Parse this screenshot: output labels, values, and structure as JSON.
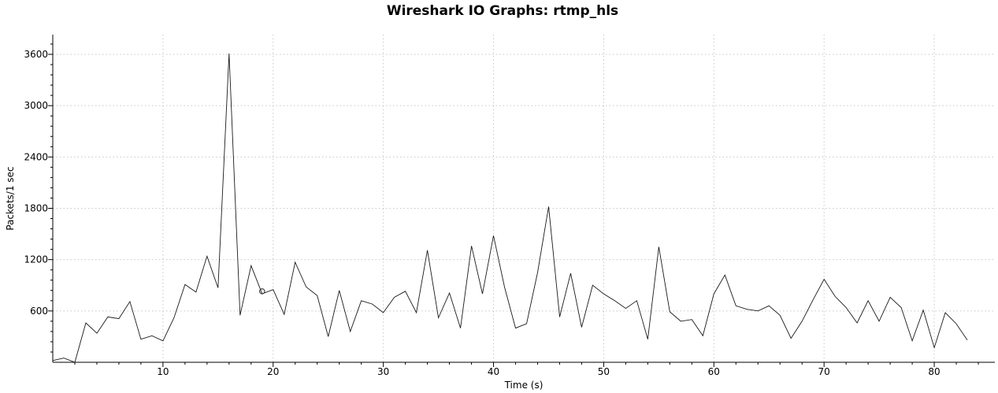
{
  "chart_data": {
    "type": "line",
    "title": "Wireshark IO Graphs: rtmp_hls",
    "xlabel": "Time (s)",
    "ylabel": "Packets/1 sec",
    "xlim": [
      0,
      85.5
    ],
    "ylim": [
      0,
      3830
    ],
    "xticks": [
      10,
      20,
      30,
      40,
      50,
      60,
      70,
      80
    ],
    "yticks": [
      600,
      1200,
      1800,
      2400,
      3000,
      3600
    ],
    "grid": true,
    "series": [
      {
        "name": "",
        "color": "#1a1a1a",
        "x": [
          0,
          1,
          2,
          3,
          4,
          5,
          6,
          7,
          8,
          9,
          10,
          11,
          12,
          13,
          14,
          15,
          16,
          17,
          18,
          19,
          20,
          21,
          22,
          23,
          24,
          25,
          26,
          27,
          28,
          29,
          30,
          31,
          32,
          33,
          34,
          35,
          36,
          37,
          38,
          39,
          40,
          41,
          42,
          43,
          44,
          45,
          46,
          47,
          48,
          49,
          50,
          51,
          52,
          53,
          54,
          55,
          56,
          57,
          58,
          59,
          60,
          61,
          62,
          63,
          64,
          65,
          66,
          67,
          68,
          69,
          70,
          71,
          72,
          73,
          74,
          75,
          76,
          77,
          78,
          79,
          80,
          81,
          82,
          83
        ],
        "y": [
          20,
          50,
          0,
          460,
          340,
          530,
          510,
          710,
          270,
          310,
          250,
          520,
          910,
          820,
          1240,
          870,
          3610,
          550,
          1130,
          800,
          850,
          560,
          1170,
          880,
          780,
          300,
          840,
          360,
          720,
          680,
          580,
          760,
          830,
          580,
          1310,
          520,
          810,
          400,
          1360,
          800,
          1480,
          880,
          400,
          450,
          1050,
          1820,
          530,
          1040,
          410,
          900,
          800,
          720,
          630,
          720,
          270,
          1350,
          590,
          480,
          500,
          310,
          800,
          1020,
          660,
          620,
          600,
          660,
          550,
          280,
          480,
          730,
          970,
          770,
          640,
          460,
          720,
          480,
          760,
          640,
          250,
          610,
          170,
          580,
          450,
          260
        ]
      }
    ],
    "markers": [
      {
        "x": 19,
        "y": 830
      }
    ]
  }
}
